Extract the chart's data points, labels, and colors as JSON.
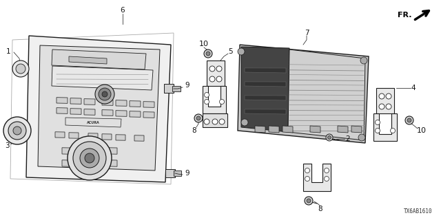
{
  "background_color": "#ffffff",
  "diagram_code": "TX6AB1610",
  "fr_label": "FR.",
  "line_color": "#1a1a1a",
  "fill_light": "#f0f0f0",
  "fill_mid": "#d8d8d8",
  "fill_dark": "#555555"
}
